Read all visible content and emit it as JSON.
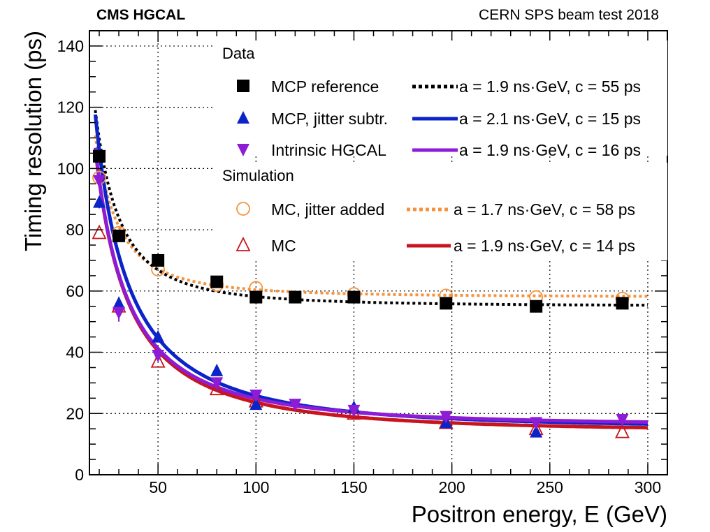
{
  "header": {
    "left": "CMS HGCAL",
    "right": "CERN SPS beam test 2018"
  },
  "chart_data": {
    "type": "scatter",
    "xlabel": "Positron energy, E (GeV)",
    "ylabel": "Timing resolution (ps)",
    "xlim": [
      15,
      310
    ],
    "ylim": [
      0,
      145
    ],
    "xticks": [
      50,
      100,
      150,
      200,
      250,
      300
    ],
    "yticks": [
      0,
      20,
      40,
      60,
      80,
      100,
      120,
      140
    ],
    "grid": "dotted",
    "legend": {
      "data_heading": "Data",
      "sim_heading": "Simulation"
    },
    "series": [
      {
        "id": "mcp_ref",
        "group": "data",
        "name": "MCP reference",
        "marker": "square-filled",
        "color": "#000000",
        "x": [
          20,
          30,
          50,
          80,
          100,
          120,
          150,
          197,
          243,
          287
        ],
        "y": [
          104,
          78,
          70,
          63,
          58,
          58,
          58,
          56,
          55,
          56
        ],
        "yerr": [
          1.5,
          1.5,
          1,
          1,
          1,
          1,
          1,
          1,
          1,
          1
        ],
        "fit": {
          "a_ns_gev": 1.9,
          "c_ps": 55,
          "style": "dotted",
          "color": "#000000",
          "label": "a = 1.9 ns·GeV, c = 55 ps"
        }
      },
      {
        "id": "mcp_jitter",
        "group": "data",
        "name": "MCP, jitter subtr.",
        "marker": "triangle-up-filled",
        "color": "#0b24c8",
        "x": [
          20,
          30,
          50,
          80,
          100,
          150,
          197,
          243
        ],
        "y": [
          89,
          56,
          45,
          34,
          23,
          22,
          17,
          14
        ],
        "yerr": [
          2,
          2,
          1,
          1,
          1,
          1,
          1,
          1
        ],
        "fit": {
          "a_ns_gev": 2.1,
          "c_ps": 15,
          "style": "solid",
          "color": "#0b24c8",
          "label": "a = 2.1 ns·GeV, c = 15 ps"
        }
      },
      {
        "id": "intrinsic",
        "group": "data",
        "name": "Intrinsic HGCAL",
        "marker": "triangle-down-filled",
        "color": "#8e1bd6",
        "x": [
          20,
          30,
          50,
          80,
          100,
          120,
          150,
          197,
          243,
          287
        ],
        "y": [
          96,
          53,
          39,
          30,
          26,
          23,
          21,
          19,
          17,
          18
        ],
        "yerr": [
          2,
          3,
          1,
          1,
          1,
          1,
          1,
          1,
          1,
          1
        ],
        "fit": {
          "a_ns_gev": 1.9,
          "c_ps": 16,
          "style": "solid",
          "color": "#8e1bd6",
          "label": "a = 1.9 ns·GeV, c = 16 ps"
        }
      },
      {
        "id": "mc_jitter",
        "group": "simulation",
        "name": "MC, jitter added",
        "marker": "circle-open",
        "color": "#f5933d",
        "x": [
          20,
          30,
          50,
          80,
          100,
          150,
          197,
          243,
          287
        ],
        "y": [
          97,
          79,
          67,
          62,
          61,
          59,
          58.5,
          58,
          57.5
        ],
        "fit": {
          "a_ns_gev": 1.7,
          "c_ps": 58,
          "style": "dotted",
          "color": "#f5933d",
          "label": "a = 1.7 ns·GeV, c = 58 ps"
        }
      },
      {
        "id": "mc",
        "group": "simulation",
        "name": "MC",
        "marker": "triangle-up-open",
        "color": "#c8141e",
        "x": [
          20,
          30,
          50,
          80,
          100,
          150,
          197,
          243,
          287
        ],
        "y": [
          79,
          55,
          37,
          28,
          24,
          20,
          17,
          15,
          14
        ],
        "fit": {
          "a_ns_gev": 1.9,
          "c_ps": 14,
          "style": "solid",
          "color": "#c8141e",
          "label": "a = 1.9 ns·GeV, c = 14 ps"
        }
      }
    ]
  }
}
